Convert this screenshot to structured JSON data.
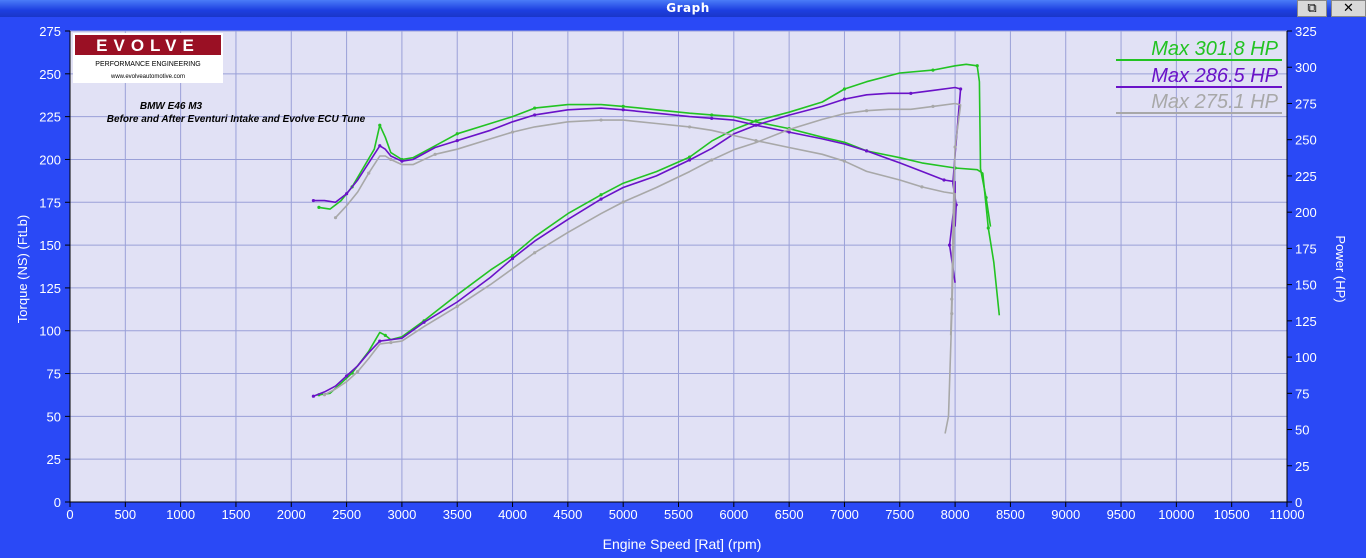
{
  "window": {
    "title": "Graph",
    "restore_label": "⧉",
    "close_label": "✕"
  },
  "colors": {
    "background": "#2a49f6",
    "plot_bg": "#e1e1f5",
    "grid": "#9aa0d8",
    "after_green": "#22c322",
    "after_purple": "#6a12c8",
    "before_grey": "#a8a8a8"
  },
  "logo": {
    "brand": "EVOLVE",
    "subtitle": "PERFORMANCE ENGINEERING",
    "url": "www.evolveautomotive.com"
  },
  "chart_data": {
    "type": "line",
    "title": "BMW E46 M3",
    "subtitle": "Before and After Eventuri Intake and Evolve ECU Tune",
    "xlabel": "Engine Speed [Rat] (rpm)",
    "ylabel": "Torque (NS) (FtLb)",
    "y2label": "Power (HP)",
    "xlim": [
      0,
      11000
    ],
    "ylim": [
      0,
      275
    ],
    "y2lim": [
      0,
      325
    ],
    "x_ticks": [
      "0",
      "500",
      "1000",
      "1500",
      "2000",
      "2500",
      "3000",
      "3500",
      "4000",
      "4500",
      "5000",
      "5500",
      "6000",
      "6500",
      "7000",
      "7500",
      "8000",
      "8500",
      "9000",
      "9500",
      "10000",
      "10500",
      "11000"
    ],
    "y_ticks": [
      "0",
      "25",
      "50",
      "75",
      "100",
      "125",
      "150",
      "175",
      "200",
      "225",
      "250",
      "275"
    ],
    "y2_ticks": [
      "0",
      "25",
      "50",
      "75",
      "100",
      "125",
      "150",
      "175",
      "200",
      "225",
      "250",
      "275",
      "300",
      "325"
    ],
    "grid": true,
    "legend_position": "top-right",
    "legend": [
      "Max 301.8 HP",
      "Max 286.5 HP",
      "Max 275.1 HP"
    ],
    "series": [
      {
        "name": "Max 301.8 HP",
        "color": "#22c322",
        "axis": "torque",
        "points": [
          [
            2250,
            172
          ],
          [
            2350,
            171
          ],
          [
            2450,
            176
          ],
          [
            2550,
            184
          ],
          [
            2650,
            195
          ],
          [
            2750,
            206
          ],
          [
            2800,
            220
          ],
          [
            2850,
            213
          ],
          [
            2900,
            204
          ],
          [
            3000,
            200
          ],
          [
            3100,
            201
          ],
          [
            3300,
            208
          ],
          [
            3500,
            215
          ],
          [
            3800,
            221
          ],
          [
            4000,
            225
          ],
          [
            4200,
            230
          ],
          [
            4500,
            232
          ],
          [
            4800,
            232
          ],
          [
            5000,
            231
          ],
          [
            5300,
            229
          ],
          [
            5600,
            227
          ],
          [
            5800,
            226
          ],
          [
            6000,
            225
          ],
          [
            6200,
            222
          ],
          [
            6500,
            218
          ],
          [
            6800,
            213
          ],
          [
            7000,
            210
          ],
          [
            7200,
            205
          ],
          [
            7500,
            201
          ],
          [
            7700,
            198
          ],
          [
            8000,
            195
          ],
          [
            8200,
            194
          ],
          [
            8250,
            192
          ],
          [
            8300,
            160
          ],
          [
            8350,
            140
          ],
          [
            8400,
            109
          ]
        ]
      },
      {
        "name": "Max 301.8 HP",
        "color": "#22c322",
        "axis": "power",
        "points": [
          [
            2250,
            74
          ],
          [
            2350,
            75
          ],
          [
            2450,
            82
          ],
          [
            2550,
            89
          ],
          [
            2700,
            104
          ],
          [
            2800,
            117
          ],
          [
            2850,
            115
          ],
          [
            2900,
            112
          ],
          [
            3000,
            114
          ],
          [
            3200,
            125
          ],
          [
            3500,
            143
          ],
          [
            3800,
            160
          ],
          [
            4000,
            170
          ],
          [
            4200,
            183
          ],
          [
            4500,
            199
          ],
          [
            4800,
            212
          ],
          [
            5000,
            220
          ],
          [
            5300,
            228
          ],
          [
            5600,
            238
          ],
          [
            5800,
            249
          ],
          [
            6000,
            257
          ],
          [
            6200,
            263
          ],
          [
            6500,
            269
          ],
          [
            6800,
            276
          ],
          [
            7000,
            285
          ],
          [
            7200,
            290
          ],
          [
            7500,
            296
          ],
          [
            7800,
            298
          ],
          [
            8000,
            301
          ],
          [
            8100,
            302
          ],
          [
            8200,
            301
          ],
          [
            8220,
            290
          ],
          [
            8230,
            230
          ],
          [
            8280,
            210
          ],
          [
            8320,
            190
          ]
        ]
      },
      {
        "name": "Max 286.5 HP",
        "color": "#6a12c8",
        "axis": "torque",
        "points": [
          [
            2200,
            176
          ],
          [
            2300,
            176
          ],
          [
            2400,
            175
          ],
          [
            2500,
            180
          ],
          [
            2600,
            188
          ],
          [
            2700,
            198
          ],
          [
            2800,
            208
          ],
          [
            2850,
            206
          ],
          [
            2900,
            202
          ],
          [
            3000,
            199
          ],
          [
            3100,
            200
          ],
          [
            3300,
            207
          ],
          [
            3500,
            211
          ],
          [
            3800,
            217
          ],
          [
            4000,
            222
          ],
          [
            4200,
            226
          ],
          [
            4500,
            229
          ],
          [
            4800,
            230
          ],
          [
            5000,
            229
          ],
          [
            5300,
            227
          ],
          [
            5600,
            225
          ],
          [
            5800,
            224
          ],
          [
            6000,
            223
          ],
          [
            6200,
            220
          ],
          [
            6500,
            216
          ],
          [
            6800,
            212
          ],
          [
            7000,
            209
          ],
          [
            7200,
            205
          ],
          [
            7500,
            198
          ],
          [
            7700,
            193
          ],
          [
            7900,
            188
          ],
          [
            8000,
            187
          ],
          [
            8000,
            178
          ],
          [
            7950,
            150
          ],
          [
            8000,
            128
          ]
        ]
      },
      {
        "name": "Max 286.5 HP",
        "color": "#6a12c8",
        "axis": "power",
        "points": [
          [
            2200,
            73
          ],
          [
            2300,
            76
          ],
          [
            2400,
            80
          ],
          [
            2500,
            87
          ],
          [
            2600,
            94
          ],
          [
            2700,
            103
          ],
          [
            2800,
            111
          ],
          [
            2900,
            112
          ],
          [
            3000,
            113
          ],
          [
            3200,
            124
          ],
          [
            3500,
            138
          ],
          [
            3800,
            155
          ],
          [
            4000,
            168
          ],
          [
            4200,
            180
          ],
          [
            4500,
            195
          ],
          [
            4800,
            209
          ],
          [
            5000,
            217
          ],
          [
            5300,
            225
          ],
          [
            5600,
            236
          ],
          [
            5800,
            244
          ],
          [
            6000,
            254
          ],
          [
            6200,
            260
          ],
          [
            6500,
            267
          ],
          [
            6800,
            273
          ],
          [
            7000,
            278
          ],
          [
            7200,
            281
          ],
          [
            7400,
            282
          ],
          [
            7600,
            282
          ],
          [
            7800,
            284
          ],
          [
            8000,
            286
          ],
          [
            8050,
            285
          ],
          [
            8000,
            240
          ],
          [
            7980,
            220
          ],
          [
            8010,
            205
          ],
          [
            8000,
            190
          ]
        ]
      },
      {
        "name": "Max 275.1 HP",
        "color": "#a8a8a8",
        "axis": "torque",
        "points": [
          [
            2400,
            166
          ],
          [
            2500,
            173
          ],
          [
            2600,
            181
          ],
          [
            2700,
            192
          ],
          [
            2800,
            202
          ],
          [
            2850,
            202
          ],
          [
            2900,
            200
          ],
          [
            3000,
            197
          ],
          [
            3100,
            197
          ],
          [
            3300,
            203
          ],
          [
            3500,
            206
          ],
          [
            3800,
            212
          ],
          [
            4000,
            216
          ],
          [
            4200,
            219
          ],
          [
            4500,
            222
          ],
          [
            4800,
            223
          ],
          [
            5000,
            223
          ],
          [
            5300,
            221
          ],
          [
            5600,
            219
          ],
          [
            5800,
            217
          ],
          [
            6000,
            214
          ],
          [
            6200,
            211
          ],
          [
            6500,
            207
          ],
          [
            6800,
            203
          ],
          [
            7000,
            199
          ],
          [
            7200,
            193
          ],
          [
            7500,
            188
          ],
          [
            7700,
            184
          ],
          [
            7900,
            181
          ],
          [
            8000,
            180
          ],
          [
            7970,
            110
          ],
          [
            7940,
            50
          ],
          [
            7910,
            40
          ]
        ]
      },
      {
        "name": "Max 275.1 HP",
        "color": "#a8a8a8",
        "axis": "power",
        "points": [
          [
            2300,
            74
          ],
          [
            2400,
            78
          ],
          [
            2500,
            83
          ],
          [
            2600,
            90
          ],
          [
            2700,
            99
          ],
          [
            2800,
            109
          ],
          [
            2900,
            110
          ],
          [
            3000,
            111
          ],
          [
            3200,
            121
          ],
          [
            3500,
            135
          ],
          [
            3800,
            150
          ],
          [
            4000,
            161
          ],
          [
            4200,
            172
          ],
          [
            4500,
            186
          ],
          [
            4800,
            199
          ],
          [
            5000,
            207
          ],
          [
            5300,
            217
          ],
          [
            5600,
            228
          ],
          [
            5800,
            236
          ],
          [
            6000,
            243
          ],
          [
            6200,
            248
          ],
          [
            6500,
            257
          ],
          [
            6800,
            264
          ],
          [
            7000,
            268
          ],
          [
            7200,
            270
          ],
          [
            7400,
            271
          ],
          [
            7600,
            271
          ],
          [
            7800,
            273
          ],
          [
            8000,
            275
          ],
          [
            8050,
            274
          ],
          [
            8000,
            245
          ],
          [
            7990,
            220
          ],
          [
            7980,
            185
          ],
          [
            7970,
            140
          ],
          [
            7960,
            115
          ]
        ]
      }
    ]
  }
}
